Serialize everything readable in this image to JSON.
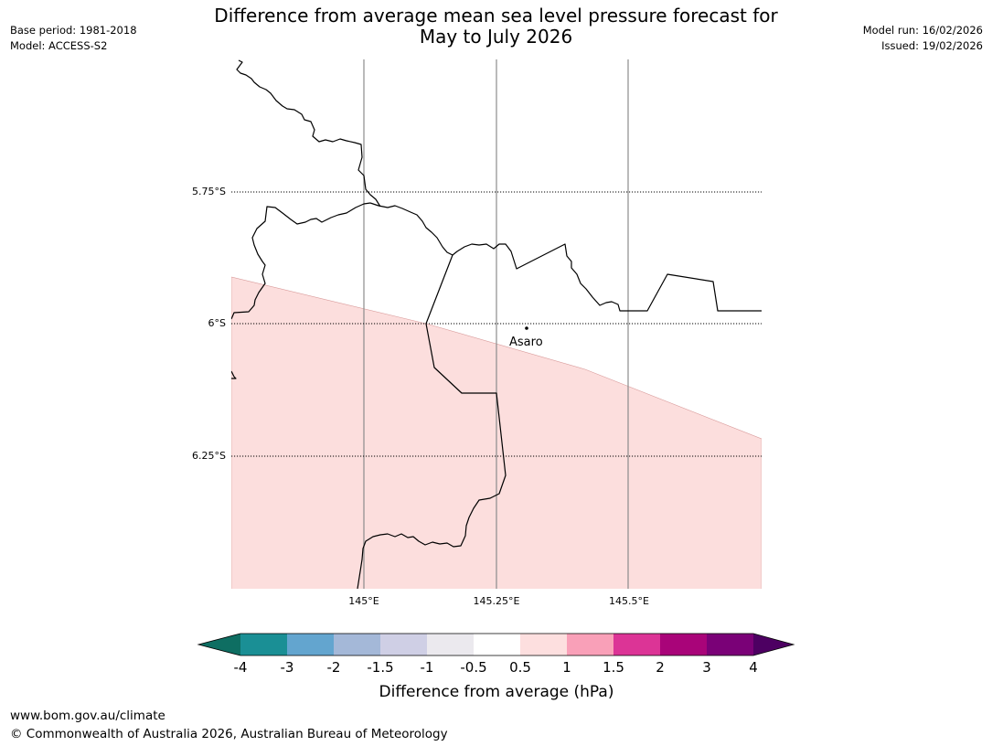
{
  "title_line1": "Difference from average mean sea level pressure forecast for",
  "title_line2": "May to July 2026",
  "meta_left": {
    "base_period": "Base period: 1981-2018",
    "model": "Model: ACCESS-S2"
  },
  "meta_right": {
    "model_run": "Model run: 16/02/2026",
    "issued": "Issued: 19/02/2026"
  },
  "map": {
    "lat_labels": [
      "5.75°S",
      "6°S",
      "6.25°S"
    ],
    "lon_labels": [
      "145°E",
      "145.25°E",
      "145.5°E"
    ],
    "place_name": "Asaro",
    "anomaly_fill_color": "#fcdedd",
    "shaded_category": "0.5 to 1"
  },
  "colorbar": {
    "tick_labels": [
      "-4",
      "-3",
      "-2",
      "-1.5",
      "-1",
      "-0.5",
      "0.5",
      "1",
      "1.5",
      "2",
      "3",
      "4"
    ],
    "colors": [
      "#0e6e62",
      "#1a8f95",
      "#63a5cf",
      "#a4b8d8",
      "#cfcfe5",
      "#ebe9ee",
      "#ffffff",
      "#fddfdf",
      "#f9a0b8",
      "#dc3496",
      "#a90479",
      "#7a0177",
      "#4d0062"
    ],
    "label": "Difference from average (hPa)"
  },
  "footer": {
    "url": "www.bom.gov.au/climate",
    "copyright": "© Commonwealth of Australia 2026, Australian Bureau of Meteorology"
  }
}
